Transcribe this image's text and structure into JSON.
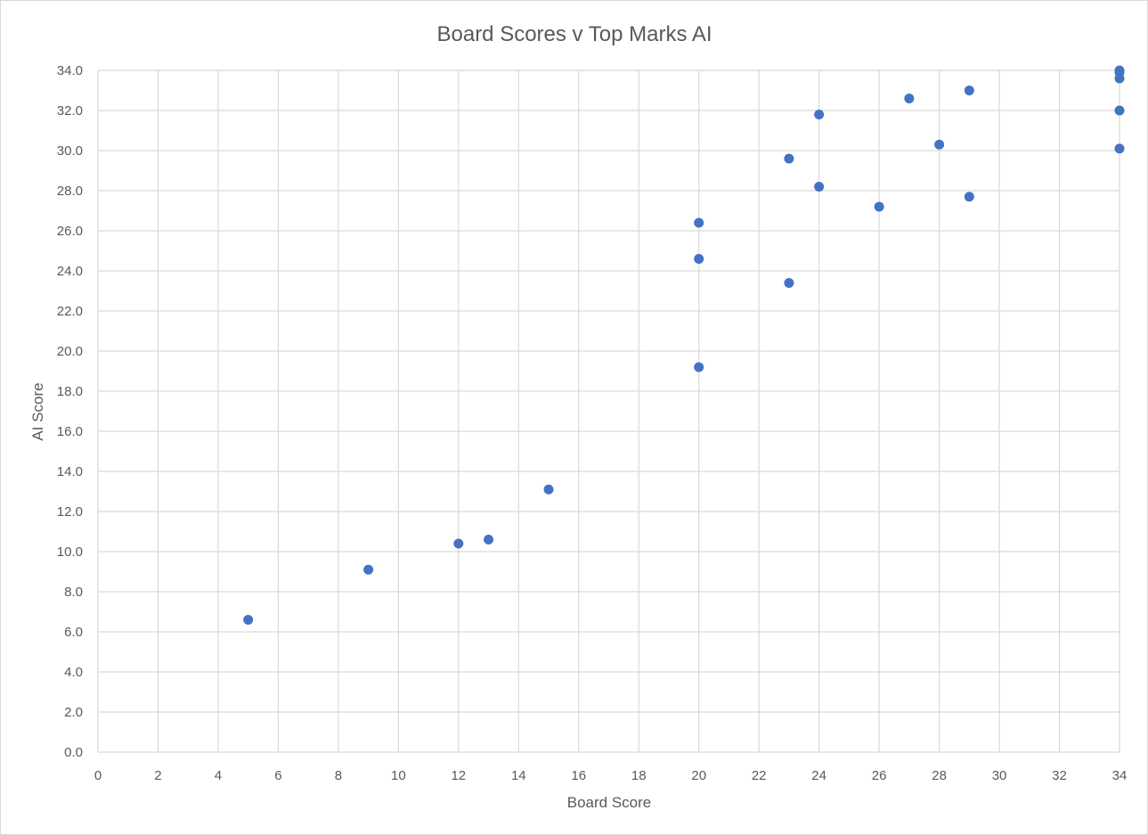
{
  "chart_data": {
    "type": "scatter",
    "title": "Board Scores v Top Marks AI",
    "xlabel": "Board Score",
    "ylabel": "AI Score",
    "xlim": [
      0,
      34
    ],
    "ylim": [
      0,
      34
    ],
    "xticks": [
      "0",
      "2",
      "4",
      "6",
      "8",
      "10",
      "12",
      "14",
      "16",
      "18",
      "20",
      "22",
      "24",
      "26",
      "28",
      "30",
      "32",
      "34"
    ],
    "yticks": [
      "0.0",
      "2.0",
      "4.0",
      "6.0",
      "8.0",
      "10.0",
      "12.0",
      "14.0",
      "16.0",
      "18.0",
      "20.0",
      "22.0",
      "24.0",
      "26.0",
      "28.0",
      "30.0",
      "32.0",
      "34.0"
    ],
    "grid": true,
    "legend": "none",
    "marker_color": "#4472c4",
    "series": [
      {
        "x": [
          5,
          9,
          12,
          13,
          15,
          20,
          20,
          20,
          23,
          23,
          24,
          24,
          26,
          27,
          28,
          29,
          29,
          34,
          34,
          34,
          34,
          34
        ],
        "y": [
          6.6,
          9.1,
          10.4,
          10.6,
          13.1,
          19.2,
          24.6,
          26.4,
          23.4,
          29.6,
          28.2,
          31.8,
          27.2,
          32.6,
          30.3,
          27.7,
          33.0,
          34.0,
          33.9,
          33.6,
          32.0,
          30.1
        ]
      }
    ]
  }
}
